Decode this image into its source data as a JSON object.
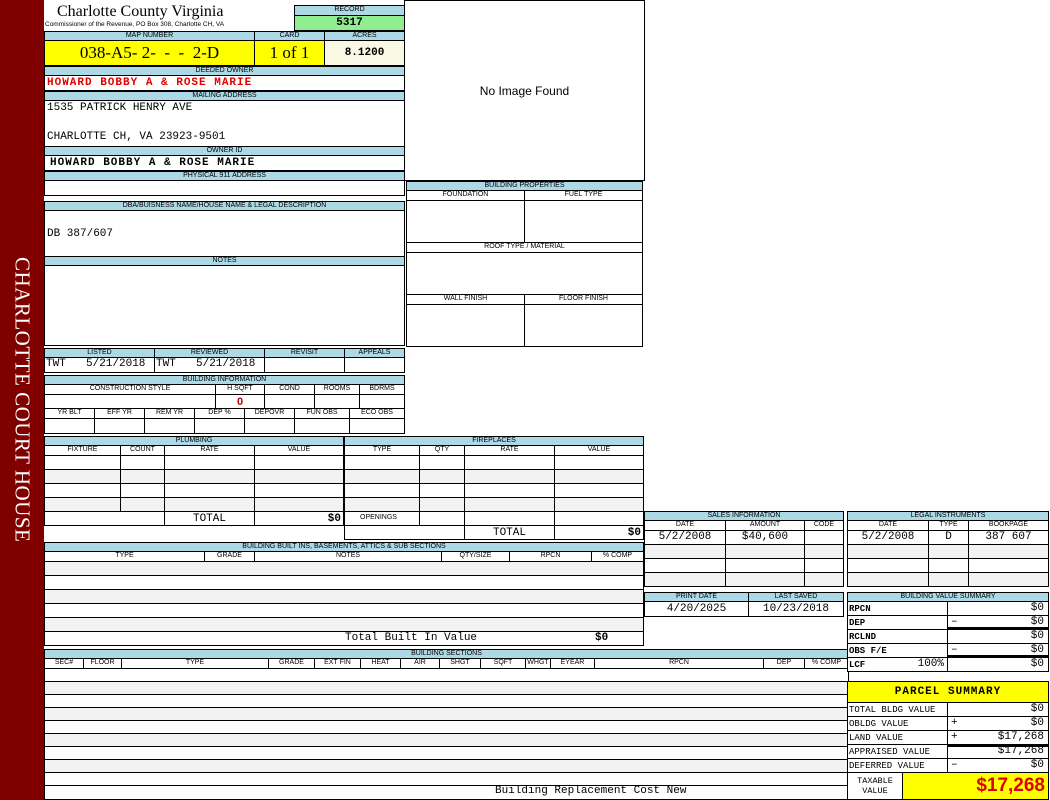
{
  "sidebar": {
    "text": "CHARLOTTE COURT HOUSE"
  },
  "header": {
    "title": "Charlotte County Virginia",
    "subtitle": "Commissioner of the Revenue, PO Box 308, Charlotte CH, VA",
    "record_label": "RECORD",
    "record_value": "5317"
  },
  "image": {
    "text": "No Image Found"
  },
  "parcel": {
    "map_number_label": "MAP NUMBER",
    "map_number": "038-A5- 2-  -  -  2-D",
    "card_label": "CARD",
    "card": "1 of 1",
    "acres_label": "ACRES",
    "acres": "8.1200"
  },
  "owner": {
    "deeded_label": "DEEDED OWNER",
    "deeded": "HOWARD BOBBY A & ROSE MARIE",
    "mailing_label": "MAILING ADDRESS",
    "mailing_line1": "1535 PATRICK HENRY AVE",
    "mailing_line2": "CHARLOTTE CH, VA 23923-9501",
    "owner_id_label": "OWNER ID",
    "owner_id": "HOWARD BOBBY A & ROSE MARIE",
    "physical_label": "PHYSICAL 911 ADDRESS"
  },
  "legal": {
    "label": "DBA/BUISNESS NAME/HOUSE NAME & LEGAL DESCRIPTION",
    "value": "DB 387/607"
  },
  "notes": {
    "label": "NOTES"
  },
  "review": {
    "listed_label": "LISTED",
    "listed_by": "TWT",
    "listed_date": "5/21/2018",
    "reviewed_label": "REVIEWED",
    "reviewed_by": "TWT",
    "reviewed_date": "5/21/2018",
    "revisit_label": "REVISIT",
    "appeals_label": "APPEALS"
  },
  "building_info": {
    "label": "BUILDING INFORMATION",
    "cols1": [
      "CONSTRUCTION STYLE",
      "H SQFT",
      "COND",
      "ROOMS",
      "BDRMS"
    ],
    "hsqft": "0",
    "cols2": [
      "YR BLT",
      "EFF YR",
      "REM YR",
      "DEP %",
      "DEPOVR",
      "FUN OBS",
      "ECO OBS"
    ]
  },
  "building_properties": {
    "label": "BUILDING PROPERTIES",
    "foundation": "FOUNDATION",
    "fuel": "FUEL TYPE",
    "roof": "ROOF TYPE / MATERIAL",
    "wall": "WALL FINISH",
    "floor": "FLOOR FINISH"
  },
  "plumbing": {
    "label": "PLUMBING",
    "cols": [
      "FIXTURE",
      "COUNT",
      "RATE",
      "VALUE"
    ],
    "total_label": "TOTAL",
    "total": "$0"
  },
  "fireplaces": {
    "label": "FIREPLACES",
    "cols": [
      "TYPE",
      "QTY",
      "RATE",
      "VALUE"
    ],
    "openings_label": "OPENINGS",
    "total_label": "TOTAL",
    "total": "$0"
  },
  "builtins": {
    "label": "BUILDING BUILT INS, BASEMENTS, ATTICS & SUB SECTIONS",
    "cols": [
      "TYPE",
      "GRADE",
      "NOTES",
      "QTY/SIZE",
      "RPCN",
      "% COMP"
    ],
    "total_label": "Total Built In Value",
    "total": "$0"
  },
  "sections": {
    "label": "BUILDING SECTIONS",
    "cols": [
      "SEC#",
      "FLOOR",
      "TYPE",
      "GRADE",
      "EXT FIN",
      "HEAT",
      "AIR",
      "SHGT",
      "SQFT",
      "WHGT",
      "EYEAR",
      "RPCN",
      "DEP",
      "% COMP"
    ],
    "footer": "Building Replacement Cost New"
  },
  "sales": {
    "label": "SALES INFORMATION",
    "cols": [
      "DATE",
      "AMOUNT",
      "CODE"
    ],
    "rows": [
      [
        "5/2/2008",
        "$40,600",
        ""
      ]
    ]
  },
  "legal_instruments": {
    "label": "LEGAL INSTRUMENTS",
    "cols": [
      "DATE",
      "TYPE",
      "BOOKPAGE"
    ],
    "rows": [
      [
        "5/2/2008",
        "D",
        "387 607"
      ]
    ]
  },
  "dates": {
    "print_label": "PRINT DATE",
    "print_date": "4/20/2025",
    "saved_label": "LAST SAVED",
    "saved_date": "10/23/2018"
  },
  "bvs": {
    "label": "BUILDING VALUE SUMMARY",
    "rows": [
      {
        "label": "RPCN",
        "sign": "",
        "value": "$0"
      },
      {
        "label": "DEP",
        "sign": "–",
        "value": "$0"
      },
      {
        "label": "RCLND",
        "sign": "",
        "value": "$0"
      },
      {
        "label": "OBS F/E",
        "sign": "–",
        "value": "$0"
      },
      {
        "label": "LCF",
        "pct": "100%",
        "sign": "",
        "value": "$0"
      }
    ]
  },
  "parcel_summary": {
    "label": "PARCEL SUMMARY",
    "rows": [
      {
        "label": "TOTAL BLDG VALUE",
        "sign": "",
        "value": "$0"
      },
      {
        "label": "OBLDG VALUE",
        "sign": "+",
        "value": "$0"
      },
      {
        "label": "LAND VALUE",
        "sign": "+",
        "value": "$17,268"
      },
      {
        "label": "APPRAISED VALUE",
        "sign": "",
        "value": "$17,268"
      },
      {
        "label": "DEFERRED VALUE",
        "sign": "–",
        "value": "$0"
      }
    ],
    "taxable_label": "TAXABLE VALUE",
    "taxable": "$17,268"
  },
  "colors": {
    "sidebar": "#800000",
    "header_blue": "#add8e6",
    "highlight_yellow": "#ffff00",
    "record_green": "#90ee90",
    "owner_red": "#e00000",
    "taxable_red": "#e00000"
  }
}
